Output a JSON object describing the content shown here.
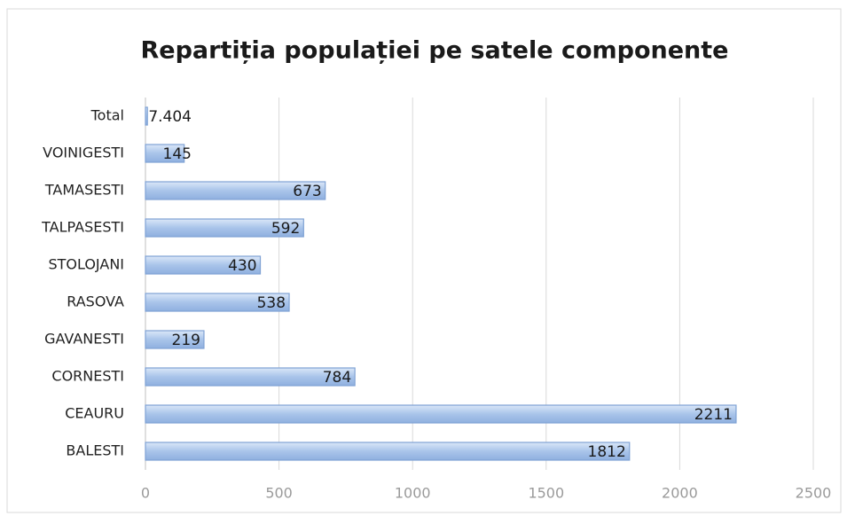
{
  "chart_data": {
    "type": "hbar",
    "title": "Repartiția populației pe satele componente",
    "categories": [
      "Total",
      "VOINIGESTI",
      "TAMASESTI",
      "TALPASESTI",
      "STOLOJANI",
      "RASOVA",
      "GAVANESTI",
      "CORNESTI",
      "CEAURU",
      "BALESTI"
    ],
    "values": [
      7.404,
      145,
      673,
      592,
      430,
      538,
      219,
      784,
      2211,
      1812
    ],
    "color": "#a9c4ea",
    "xlim": [
      0,
      2500
    ],
    "xticks": [
      0,
      500,
      1000,
      1500,
      2000,
      2500
    ],
    "grid": true
  }
}
